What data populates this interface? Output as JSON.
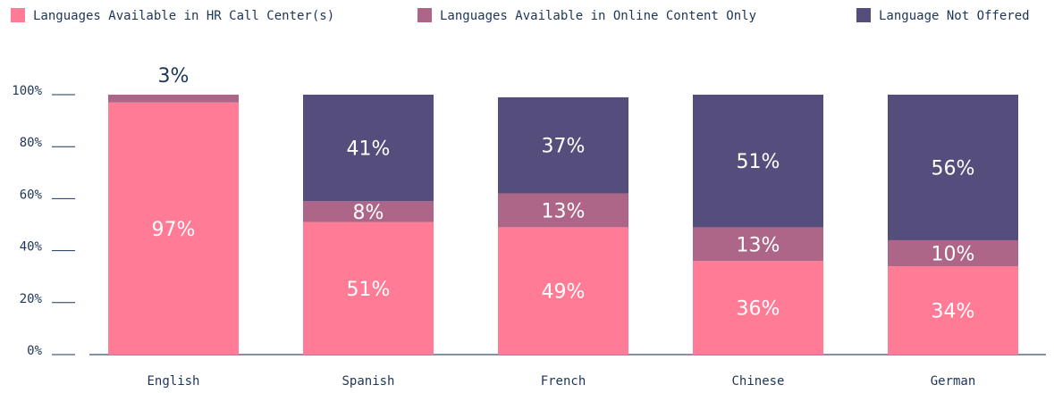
{
  "chart_data": {
    "type": "stacked_bar",
    "categories": [
      "English",
      "Spanish",
      "French",
      "Chinese",
      "German"
    ],
    "series": [
      {
        "name": "Languages Available in HR Call Center(s)",
        "color": "#ff7b96",
        "values": [
          97,
          51,
          49,
          36,
          34
        ],
        "value_labels": [
          "97%",
          "51%",
          "49%",
          "36%",
          "34%"
        ]
      },
      {
        "name": "Languages Available in Online Content Only",
        "color": "#ad6688",
        "values": [
          3,
          8,
          13,
          13,
          10
        ],
        "value_labels": [
          "3%",
          "8%",
          "13%",
          "13%",
          "10%"
        ]
      },
      {
        "name": "Language Not Offered",
        "color": "#554e7c",
        "values": [
          0,
          41,
          37,
          51,
          56
        ],
        "value_labels": [
          null,
          "41%",
          "37%",
          "51%",
          "56%"
        ]
      }
    ],
    "ylim": [
      0,
      100
    ],
    "yticks": [
      {
        "value": 0,
        "label": "0%"
      },
      {
        "value": 20,
        "label": "20%"
      },
      {
        "value": 40,
        "label": "40%"
      },
      {
        "value": 60,
        "label": "60%"
      },
      {
        "value": 80,
        "label": "80%"
      },
      {
        "value": 100,
        "label": "100%"
      }
    ],
    "legend": "top"
  }
}
